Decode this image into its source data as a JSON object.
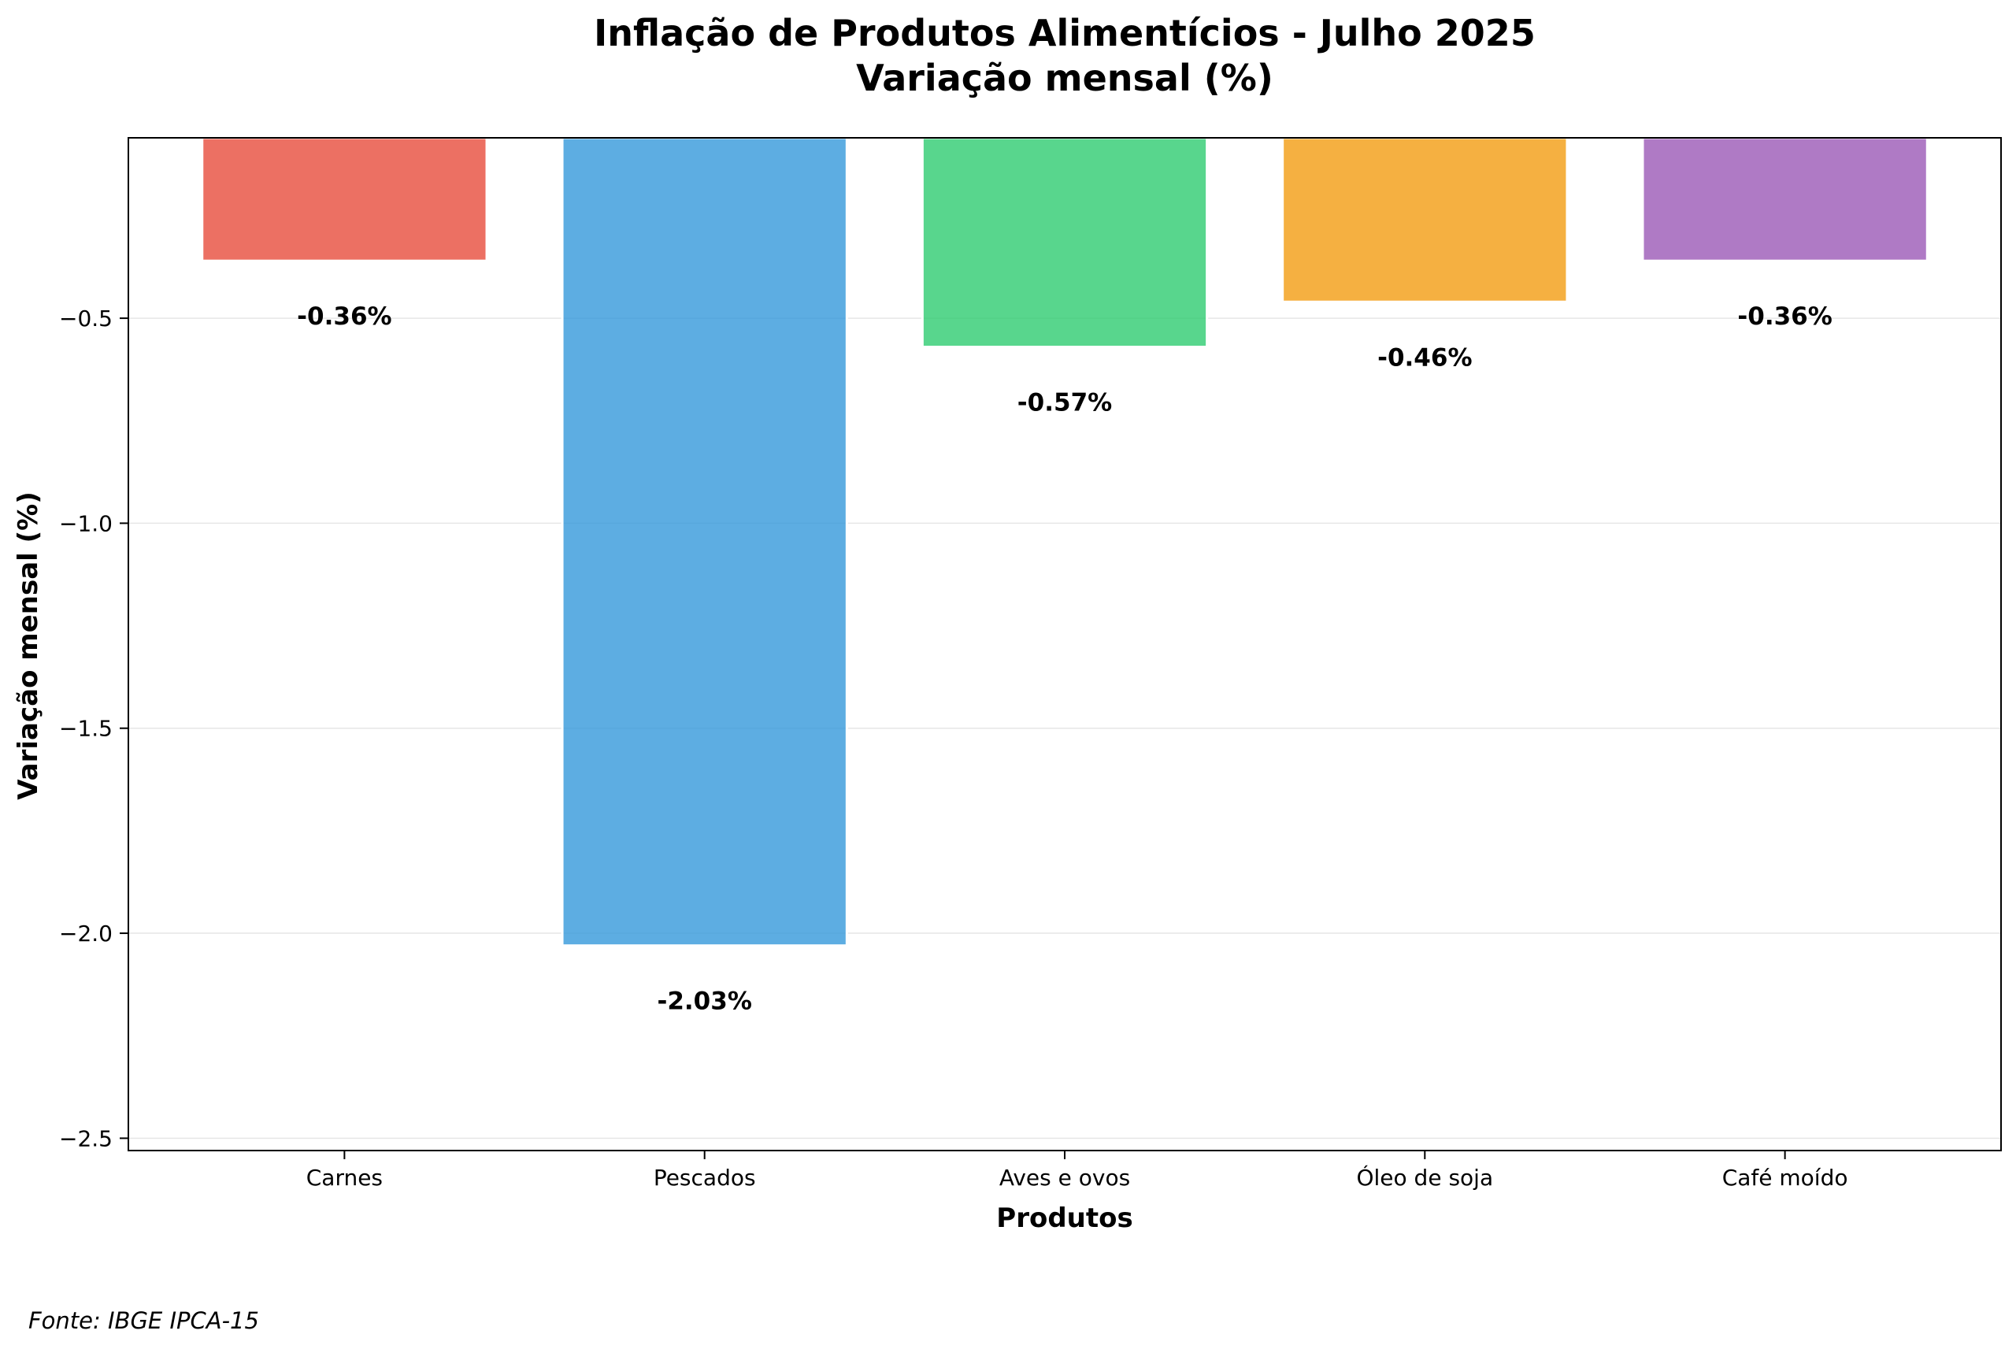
{
  "chart_data": {
    "type": "bar",
    "title": "Inflação de Produtos Alimentícios - Julho 2025",
    "subtitle": "Variação mensal (%)",
    "xlabel": "Produtos",
    "ylabel": "Variação mensal (%)",
    "categories": [
      "Carnes",
      "Pescados",
      "Aves e ovos",
      "Óleo de soja",
      "Café moído"
    ],
    "values": [
      -0.36,
      -2.03,
      -0.57,
      -0.46,
      -0.36
    ],
    "value_labels": [
      "-0.36%",
      "-2.03%",
      "-0.57%",
      "-0.46%",
      "-0.36%"
    ],
    "colors": [
      "#e74c3c",
      "#3498db",
      "#2ecc71",
      "#f39c12",
      "#9b59b6"
    ],
    "ylim": [
      -2.53,
      -0.06
    ],
    "yticks": [
      -0.5,
      -1.0,
      -1.5,
      -2.0,
      -2.5
    ],
    "ytick_labels": [
      "−0.5",
      "−1.0",
      "−1.5",
      "−2.0",
      "−2.5"
    ],
    "grid": "y",
    "legend": "none",
    "source": "Fonte: IBGE IPCA-15"
  }
}
